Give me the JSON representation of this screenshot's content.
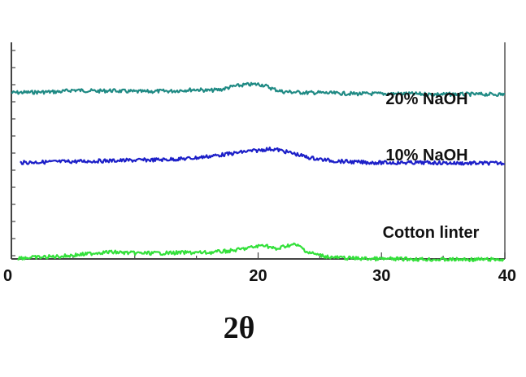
{
  "chart_data": {
    "type": "line",
    "title": "",
    "xlabel": "2θ",
    "ylabel": "",
    "xlim": [
      0,
      40
    ],
    "x_ticks": [
      "0",
      "20",
      "30",
      "40"
    ],
    "grid": false,
    "series": [
      {
        "name": "20% NaOH",
        "color": "#1f8a84",
        "x": [
          0,
          2,
          4,
          5,
          6,
          7,
          8,
          9,
          10,
          11,
          12,
          13,
          14,
          15,
          16,
          17,
          18,
          19,
          20,
          20.5,
          21,
          21.5,
          22,
          23,
          24,
          25,
          26,
          28,
          30,
          32,
          34,
          36,
          38,
          40
        ],
        "y": [
          0.71,
          0.72,
          0.73,
          0.76,
          0.75,
          0.74,
          0.75,
          0.74,
          0.73,
          0.73,
          0.74,
          0.74,
          0.76,
          0.77,
          0.75,
          0.77,
          0.83,
          0.86,
          0.87,
          0.85,
          0.8,
          0.76,
          0.73,
          0.72,
          0.71,
          0.71,
          0.7,
          0.69,
          0.69,
          0.69,
          0.68,
          0.68,
          0.68,
          0.68
        ]
      },
      {
        "name": "10% NaOH",
        "color": "#1c1fc8",
        "x": [
          0.7,
          2,
          4,
          6,
          8,
          10,
          12,
          14,
          15,
          16,
          17,
          18,
          19,
          20,
          20.5,
          21,
          21.5,
          22,
          23,
          24,
          25,
          26,
          28,
          30,
          32,
          34,
          36,
          38,
          40
        ],
        "y": [
          0.42,
          0.43,
          0.44,
          0.45,
          0.46,
          0.47,
          0.48,
          0.5,
          0.52,
          0.55,
          0.58,
          0.61,
          0.65,
          0.67,
          0.69,
          0.7,
          0.69,
          0.66,
          0.6,
          0.53,
          0.49,
          0.46,
          0.43,
          0.42,
          0.42,
          0.42,
          0.41,
          0.41,
          0.41
        ]
      },
      {
        "name": "Cotton linter",
        "color": "#33e03a",
        "x": [
          0.5,
          2,
          4,
          6,
          7,
          8,
          9,
          10,
          12,
          14,
          16,
          18,
          20,
          20.5,
          21,
          21.5,
          22,
          22.5,
          23,
          23.5,
          24,
          25,
          26,
          28,
          30,
          32,
          34,
          36,
          38,
          40
        ],
        "y": [
          0.05,
          0.06,
          0.08,
          0.12,
          0.15,
          0.16,
          0.15,
          0.14,
          0.14,
          0.15,
          0.15,
          0.19,
          0.27,
          0.3,
          0.25,
          0.21,
          0.26,
          0.29,
          0.3,
          0.25,
          0.16,
          0.1,
          0.06,
          0.04,
          0.03,
          0.03,
          0.02,
          0.02,
          0.02,
          0.02
        ]
      }
    ]
  }
}
